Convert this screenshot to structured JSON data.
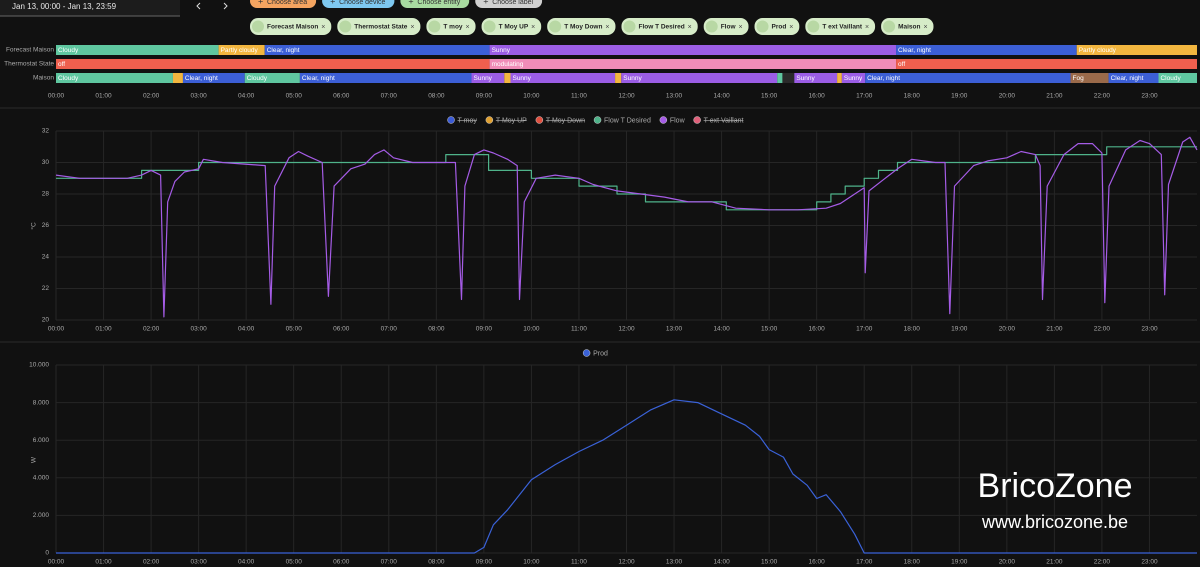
{
  "toolbar": {
    "date_range": "Jan 13, 00:00 - Jan 13, 23:59",
    "buttons": [
      {
        "label": "Choose area",
        "color": "#f4a460"
      },
      {
        "label": "Choose device",
        "color": "#7ec8f0"
      },
      {
        "label": "Choose entity",
        "color": "#a8dba0"
      },
      {
        "label": "Choose label",
        "color": "#d0d0d0"
      }
    ]
  },
  "chips": [
    "Forecast Maison",
    "Thermostat State",
    "T moy",
    "T Moy UP",
    "T Moy Down",
    "Flow T Desired",
    "Flow",
    "Prod",
    "T ext Vaillant",
    "Maison"
  ],
  "timeline": {
    "xlim": [
      0,
      24
    ],
    "xticks": [
      {
        "value": 0,
        "label": "00:00"
      },
      {
        "value": 1,
        "label": "01:00"
      },
      {
        "value": 2,
        "label": "02:00"
      },
      {
        "value": 3,
        "label": "03:00"
      },
      {
        "value": 4,
        "label": "04:00"
      },
      {
        "value": 5,
        "label": "05:00"
      },
      {
        "value": 6,
        "label": "06:00"
      },
      {
        "value": 7,
        "label": "07:00"
      },
      {
        "value": 8,
        "label": "08:00"
      },
      {
        "value": 9,
        "label": "09:00"
      },
      {
        "value": 10,
        "label": "10:00"
      },
      {
        "value": 11,
        "label": "11:00"
      },
      {
        "value": 12,
        "label": "12:00"
      },
      {
        "value": 13,
        "label": "13:00"
      },
      {
        "value": 14,
        "label": "14:00"
      },
      {
        "value": 15,
        "label": "15:00"
      },
      {
        "value": 16,
        "label": "16:00"
      },
      {
        "value": 17,
        "label": "17:00"
      },
      {
        "value": 18,
        "label": "18:00"
      },
      {
        "value": 19,
        "label": "19:00"
      },
      {
        "value": 20,
        "label": "20:00"
      },
      {
        "value": 21,
        "label": "21:00"
      },
      {
        "value": 22,
        "label": "22:00"
      },
      {
        "value": 23,
        "label": "23:00"
      }
    ],
    "rows": [
      {
        "name": "Forecast Maison",
        "segments": [
          {
            "label": "Cloudy",
            "start": 0,
            "end": 3.42,
            "color": "#5fc7a0"
          },
          {
            "label": "Partly cloudy",
            "start": 3.42,
            "end": 4.39,
            "color": "#f2b63f"
          },
          {
            "label": "Clear, night",
            "start": 4.39,
            "end": 9.12,
            "color": "#3c5fd6"
          },
          {
            "label": "Sunny",
            "start": 9.12,
            "end": 17.67,
            "color": "#9b5de5"
          },
          {
            "label": "Clear, night",
            "start": 17.67,
            "end": 21.47,
            "color": "#3c5fd6"
          },
          {
            "label": "Partly cloudy",
            "start": 21.47,
            "end": 24,
            "color": "#f2b63f"
          }
        ]
      },
      {
        "name": "Thermostat State",
        "segments": [
          {
            "label": "off",
            "start": 0,
            "end": 9.12,
            "color": "#ef5f4e"
          },
          {
            "label": "modulating",
            "start": 9.12,
            "end": 17.67,
            "color": "#f08cb8"
          },
          {
            "label": "off",
            "start": 17.67,
            "end": 24,
            "color": "#ef5f4e"
          }
        ]
      },
      {
        "name": "Maison",
        "segments": [
          {
            "label": "Cloudy",
            "start": 0,
            "end": 2.46,
            "color": "#5fc7a0"
          },
          {
            "label": null,
            "start": 2.46,
            "end": 2.67,
            "color": "#f2b63f"
          },
          {
            "label": "Clear, night",
            "start": 2.67,
            "end": 3.97,
            "color": "#3c5fd6"
          },
          {
            "label": "Cloudy",
            "start": 3.97,
            "end": 5.13,
            "color": "#5fc7a0"
          },
          {
            "label": "Clear, night",
            "start": 5.13,
            "end": 8.74,
            "color": "#3c5fd6"
          },
          {
            "label": "Sunny",
            "start": 8.74,
            "end": 9.43,
            "color": "#9b5de5"
          },
          {
            "label": null,
            "start": 9.43,
            "end": 9.56,
            "color": "#f2b63f"
          },
          {
            "label": "Sunny",
            "start": 9.56,
            "end": 11.76,
            "color": "#9b5de5"
          },
          {
            "label": null,
            "start": 11.76,
            "end": 11.89,
            "color": "#f2b63f"
          },
          {
            "label": "Sunny",
            "start": 11.89,
            "end": 15.17,
            "color": "#9b5de5"
          },
          {
            "label": null,
            "start": 15.17,
            "end": 15.28,
            "color": "#5fc7a0"
          },
          {
            "label": null,
            "start": 15.28,
            "end": 15.53,
            "color": "#2a2a2a"
          },
          {
            "label": "Sunny",
            "start": 15.53,
            "end": 16.43,
            "color": "#9b5de5"
          },
          {
            "label": null,
            "start": 16.43,
            "end": 16.53,
            "color": "#f2b63f"
          },
          {
            "label": "Sunny",
            "start": 16.53,
            "end": 17.02,
            "color": "#9b5de5"
          },
          {
            "label": "Clear, night",
            "start": 17.02,
            "end": 21.34,
            "color": "#3c5fd6"
          },
          {
            "label": "Fog",
            "start": 21.34,
            "end": 22.14,
            "color": "#9a6a4a"
          },
          {
            "label": "Clear, night",
            "start": 22.14,
            "end": 23.19,
            "color": "#3c5fd6"
          },
          {
            "label": "Cloudy",
            "start": 23.19,
            "end": 24,
            "color": "#5fc7a0"
          }
        ]
      }
    ]
  },
  "chart_data": [
    {
      "type": "line",
      "ylabel": "°C",
      "xlim": [
        0,
        24
      ],
      "ylim": [
        20,
        32
      ],
      "yticks": [
        20,
        22,
        24,
        26,
        28,
        30,
        32
      ],
      "grid": true,
      "xticks": [
        {
          "value": 0,
          "label": "00:00"
        },
        {
          "value": 1,
          "label": "01:00"
        },
        {
          "value": 2,
          "label": "02:00"
        },
        {
          "value": 3,
          "label": "03:00"
        },
        {
          "value": 4,
          "label": "04:00"
        },
        {
          "value": 5,
          "label": "05:00"
        },
        {
          "value": 6,
          "label": "06:00"
        },
        {
          "value": 7,
          "label": "07:00"
        },
        {
          "value": 8,
          "label": "08:00"
        },
        {
          "value": 9,
          "label": "09:00"
        },
        {
          "value": 10,
          "label": "10:00"
        },
        {
          "value": 11,
          "label": "11:00"
        },
        {
          "value": 12,
          "label": "12:00"
        },
        {
          "value": 13,
          "label": "13:00"
        },
        {
          "value": 14,
          "label": "14:00"
        },
        {
          "value": 15,
          "label": "15:00"
        },
        {
          "value": 16,
          "label": "16:00"
        },
        {
          "value": 17,
          "label": "17:00"
        },
        {
          "value": 18,
          "label": "18:00"
        },
        {
          "value": 19,
          "label": "19:00"
        },
        {
          "value": 20,
          "label": "20:00"
        },
        {
          "value": 21,
          "label": "21:00"
        },
        {
          "value": 22,
          "label": "22:00"
        },
        {
          "value": 23,
          "label": "23:00"
        }
      ],
      "series": [
        {
          "name": "T moy",
          "color": "#3b5bd6",
          "hidden": true
        },
        {
          "name": "T Moy UP",
          "color": "#e0a030",
          "hidden": true
        },
        {
          "name": "T Moy Down",
          "color": "#e05040",
          "hidden": true
        },
        {
          "name": "Flow T Desired",
          "color": "#4fb38a",
          "hidden": false,
          "x": [
            0,
            1.8,
            1.8,
            3,
            3,
            8.2,
            8.2,
            9.1,
            9.1,
            10,
            10,
            11,
            11,
            11.8,
            11.8,
            12.4,
            12.4,
            14.1,
            14.1,
            16,
            16,
            16.3,
            16.3,
            16.6,
            16.6,
            17,
            17,
            17.3,
            17.3,
            17.7,
            17.7,
            20.6,
            20.6,
            22.1,
            22.1,
            24
          ],
          "values": [
            29,
            29,
            29.5,
            29.5,
            30,
            30,
            30.5,
            30.5,
            29.5,
            29.5,
            29,
            29,
            28.5,
            28.5,
            28,
            28,
            27.5,
            27.5,
            27,
            27,
            27.5,
            27.5,
            28,
            28,
            28.5,
            28.5,
            29,
            29,
            29.5,
            29.5,
            30,
            30,
            30.5,
            30.5,
            31,
            31
          ]
        },
        {
          "name": "Flow",
          "color": "#a55ce6",
          "hidden": false,
          "x": [
            0,
            0.5,
            1.5,
            1.8,
            2,
            2.2,
            2.27,
            2.35,
            2.5,
            2.7,
            3,
            3.1,
            3.5,
            4.4,
            4.52,
            4.6,
            4.9,
            5.1,
            5.3,
            5.6,
            5.73,
            5.85,
            6.2,
            6.5,
            6.7,
            6.9,
            7.1,
            7.5,
            8.4,
            8.53,
            8.6,
            8.8,
            9,
            9.2,
            9.5,
            9.7,
            9.75,
            9.85,
            10.1,
            10.5,
            11,
            11.3,
            11.8,
            12.3,
            12.8,
            13.3,
            13.8,
            14.3,
            15,
            15.6,
            16.2,
            16.5,
            16.8,
            17,
            17.02,
            17.1,
            17.4,
            17.7,
            18,
            18.5,
            18.7,
            18.8,
            18.9,
            19.3,
            19.6,
            20,
            20.3,
            20.6,
            20.7,
            20.75,
            20.85,
            21.2,
            21.5,
            21.8,
            22,
            22.06,
            22.15,
            22.5,
            22.8,
            23,
            23.25,
            23.32,
            23.4,
            23.7,
            23.85,
            24
          ],
          "values": [
            29.2,
            29,
            29,
            29.2,
            29.5,
            29.2,
            20.2,
            27.5,
            28.8,
            29.4,
            29.6,
            30.2,
            30,
            29.8,
            21,
            28.5,
            30.3,
            30.7,
            30.4,
            30,
            21.5,
            28.5,
            29.6,
            29.9,
            30.5,
            30.8,
            30.3,
            30,
            30,
            21.3,
            28.5,
            30.5,
            30.8,
            30.6,
            30.2,
            29.8,
            21.3,
            27.5,
            29,
            29.2,
            29,
            28.6,
            28.2,
            28,
            27.8,
            27.5,
            27.5,
            27.1,
            27,
            27,
            27.1,
            27.4,
            28,
            28.4,
            23,
            28.2,
            28.9,
            29.6,
            30.2,
            30,
            30,
            20.4,
            28.5,
            29.8,
            30.1,
            30.3,
            30.7,
            30.5,
            29.8,
            21.3,
            28.5,
            30.5,
            31.2,
            31.2,
            30.6,
            21.1,
            28.5,
            30.8,
            31.4,
            31.2,
            30.5,
            21.6,
            28.6,
            31.3,
            31.6,
            30.8
          ]
        },
        {
          "name": "T ext Vaillant",
          "color": "#e0607a",
          "hidden": true
        }
      ]
    },
    {
      "type": "line",
      "ylabel": "W",
      "xlim": [
        0,
        24
      ],
      "ylim": [
        0,
        10000
      ],
      "grid": true,
      "yticks": [
        0,
        {
          "value": 2000,
          "label": "2.000"
        },
        {
          "value": 4000,
          "label": "4.000"
        },
        {
          "value": 6000,
          "label": "6.000"
        },
        {
          "value": 8000,
          "label": "8.000"
        },
        {
          "value": 10000,
          "label": "10.000"
        }
      ],
      "xticks": [
        {
          "value": 0,
          "label": "00:00"
        },
        {
          "value": 1,
          "label": "01:00"
        },
        {
          "value": 2,
          "label": "02:00"
        },
        {
          "value": 3,
          "label": "03:00"
        },
        {
          "value": 4,
          "label": "04:00"
        },
        {
          "value": 5,
          "label": "05:00"
        },
        {
          "value": 6,
          "label": "06:00"
        },
        {
          "value": 7,
          "label": "07:00"
        },
        {
          "value": 8,
          "label": "08:00"
        },
        {
          "value": 9,
          "label": "09:00"
        },
        {
          "value": 10,
          "label": "10:00"
        },
        {
          "value": 11,
          "label": "11:00"
        },
        {
          "value": 12,
          "label": "12:00"
        },
        {
          "value": 13,
          "label": "13:00"
        },
        {
          "value": 14,
          "label": "14:00"
        },
        {
          "value": 15,
          "label": "15:00"
        },
        {
          "value": 16,
          "label": "16:00"
        },
        {
          "value": 17,
          "label": "17:00"
        },
        {
          "value": 18,
          "label": "18:00"
        },
        {
          "value": 19,
          "label": "19:00"
        },
        {
          "value": 20,
          "label": "20:00"
        },
        {
          "value": 21,
          "label": "21:00"
        },
        {
          "value": 22,
          "label": "22:00"
        },
        {
          "value": 23,
          "label": "23:00"
        }
      ],
      "series": [
        {
          "name": "Prod",
          "color": "#3a62d8",
          "hidden": false,
          "x": [
            0,
            8.8,
            9,
            9.2,
            9.5,
            10,
            10.5,
            11,
            11.5,
            12,
            12.5,
            13,
            13.5,
            14,
            14.5,
            14.8,
            15,
            15.3,
            15.5,
            15.8,
            16,
            16.2,
            16.5,
            16.8,
            17,
            24
          ],
          "values": [
            0,
            0,
            300,
            1500,
            2300,
            3900,
            4700,
            5400,
            6000,
            6800,
            7600,
            8150,
            8000,
            7400,
            6800,
            6200,
            5500,
            5100,
            4200,
            3600,
            2900,
            3100,
            2200,
            1000,
            0,
            0
          ]
        }
      ]
    }
  ],
  "watermark": {
    "title": "BricoZone",
    "url": "www.bricozone.be"
  }
}
